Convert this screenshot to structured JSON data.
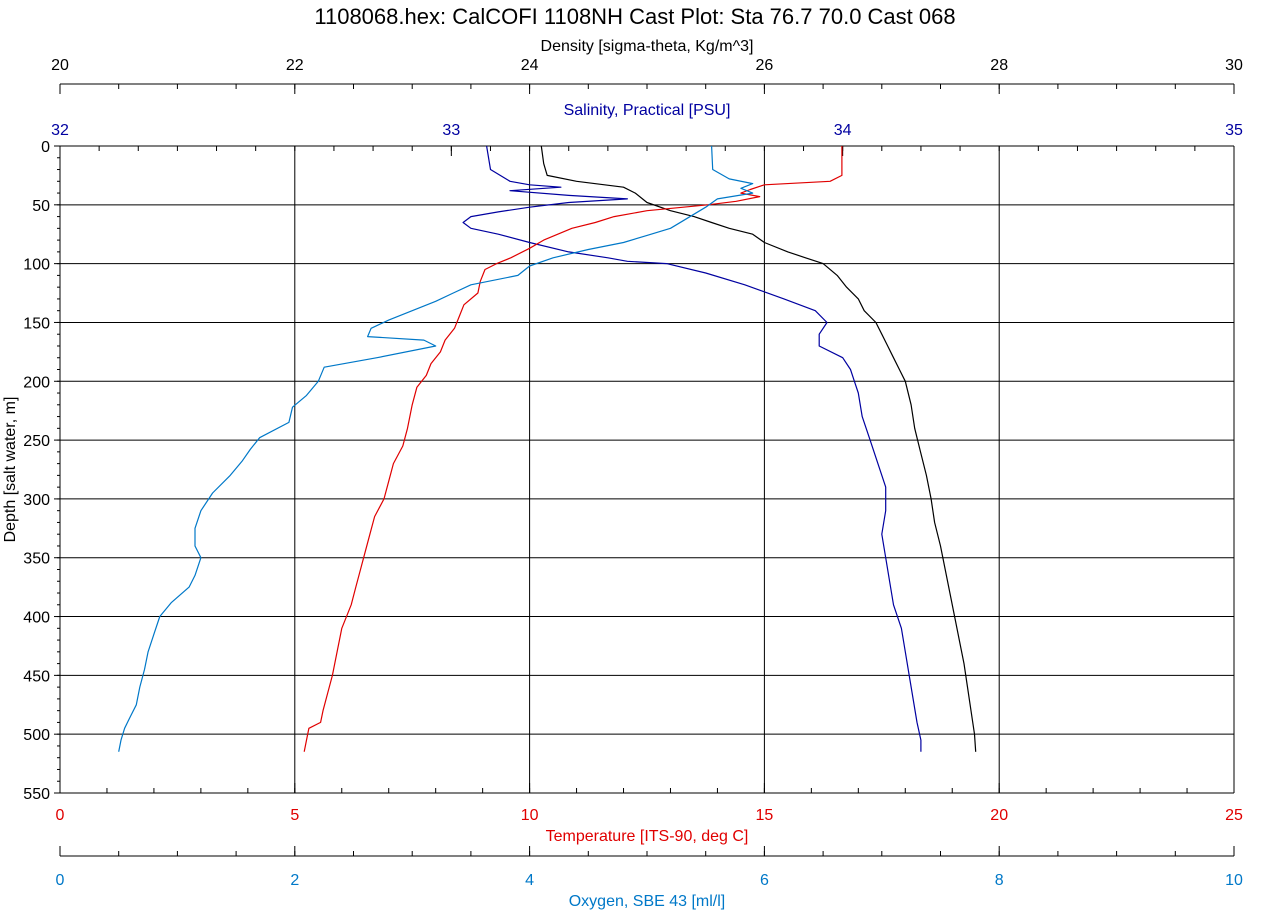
{
  "chart_data": {
    "type": "line",
    "title": "1108068.hex: CalCOFI 1108NH Cast Plot: Sta 76.7 70.0 Cast 068",
    "grid": true,
    "y_axis": {
      "label": "Depth [salt water, m]",
      "range": [
        0,
        550
      ],
      "ticks": [
        0,
        50,
        100,
        150,
        200,
        250,
        300,
        350,
        400,
        450,
        500,
        550
      ],
      "inverted": true
    },
    "x_axes": [
      {
        "id": "density",
        "label": "Density [sigma-theta, Kg/m^3]",
        "range": [
          20,
          30
        ],
        "ticks": [
          20,
          22,
          24,
          26,
          28,
          30
        ],
        "position": "top",
        "color": "#000000"
      },
      {
        "id": "salinity",
        "label": "Salinity, Practical [PSU]",
        "range": [
          32,
          35
        ],
        "ticks": [
          32,
          33,
          34,
          35
        ],
        "position": "top",
        "color": "#0000A0"
      },
      {
        "id": "temperature",
        "label": "Temperature [ITS-90, deg C]",
        "range": [
          0,
          25
        ],
        "ticks": [
          0,
          5,
          10,
          15,
          20,
          25
        ],
        "position": "bottom",
        "color": "#E00000"
      },
      {
        "id": "oxygen",
        "label": "Oxygen, SBE 43 [ml/l]",
        "range": [
          0,
          10
        ],
        "ticks": [
          0,
          2,
          4,
          6,
          8,
          10
        ],
        "position": "bottom",
        "color": "#0078C8"
      }
    ],
    "series": [
      {
        "axis": "density",
        "color": "#000000",
        "points": [
          [
            24.1,
            0
          ],
          [
            24.12,
            15
          ],
          [
            24.15,
            25
          ],
          [
            24.4,
            30
          ],
          [
            24.8,
            35
          ],
          [
            24.9,
            40
          ],
          [
            25.0,
            48
          ],
          [
            25.2,
            55
          ],
          [
            25.4,
            60
          ],
          [
            25.55,
            65
          ],
          [
            25.7,
            70
          ],
          [
            25.9,
            75
          ],
          [
            26.0,
            82
          ],
          [
            26.2,
            90
          ],
          [
            26.35,
            95
          ],
          [
            26.5,
            100
          ],
          [
            26.62,
            110
          ],
          [
            26.7,
            120
          ],
          [
            26.8,
            130
          ],
          [
            26.85,
            140
          ],
          [
            26.95,
            150
          ],
          [
            27.0,
            160
          ],
          [
            27.05,
            170
          ],
          [
            27.1,
            180
          ],
          [
            27.15,
            190
          ],
          [
            27.2,
            200
          ],
          [
            27.25,
            220
          ],
          [
            27.28,
            240
          ],
          [
            27.33,
            260
          ],
          [
            27.38,
            280
          ],
          [
            27.42,
            300
          ],
          [
            27.45,
            320
          ],
          [
            27.5,
            340
          ],
          [
            27.54,
            360
          ],
          [
            27.58,
            380
          ],
          [
            27.62,
            400
          ],
          [
            27.66,
            420
          ],
          [
            27.7,
            440
          ],
          [
            27.73,
            460
          ],
          [
            27.76,
            480
          ],
          [
            27.79,
            500
          ],
          [
            27.8,
            515
          ]
        ]
      },
      {
        "axis": "salinity",
        "color": "#0000A0",
        "points": [
          [
            33.09,
            0
          ],
          [
            33.1,
            20
          ],
          [
            33.15,
            30
          ],
          [
            33.2,
            33
          ],
          [
            33.28,
            35
          ],
          [
            33.15,
            38
          ],
          [
            33.3,
            42
          ],
          [
            33.45,
            45
          ],
          [
            33.3,
            48
          ],
          [
            33.2,
            52
          ],
          [
            33.12,
            56
          ],
          [
            33.05,
            60
          ],
          [
            33.03,
            65
          ],
          [
            33.05,
            70
          ],
          [
            33.12,
            75
          ],
          [
            33.2,
            82
          ],
          [
            33.3,
            90
          ],
          [
            33.4,
            95
          ],
          [
            33.45,
            98
          ],
          [
            33.55,
            100
          ],
          [
            33.65,
            108
          ],
          [
            33.75,
            118
          ],
          [
            33.85,
            130
          ],
          [
            33.93,
            140
          ],
          [
            33.96,
            150
          ],
          [
            33.94,
            160
          ],
          [
            33.94,
            170
          ],
          [
            34.0,
            180
          ],
          [
            34.02,
            190
          ],
          [
            34.03,
            200
          ],
          [
            34.04,
            210
          ],
          [
            34.05,
            230
          ],
          [
            34.07,
            250
          ],
          [
            34.09,
            270
          ],
          [
            34.11,
            290
          ],
          [
            34.11,
            310
          ],
          [
            34.1,
            330
          ],
          [
            34.11,
            350
          ],
          [
            34.12,
            370
          ],
          [
            34.13,
            390
          ],
          [
            34.15,
            410
          ],
          [
            34.16,
            430
          ],
          [
            34.17,
            450
          ],
          [
            34.18,
            470
          ],
          [
            34.19,
            490
          ],
          [
            34.2,
            505
          ],
          [
            34.2,
            515
          ]
        ]
      },
      {
        "axis": "temperature",
        "color": "#E00000",
        "points": [
          [
            16.65,
            0
          ],
          [
            16.65,
            25
          ],
          [
            16.4,
            30
          ],
          [
            15.0,
            33
          ],
          [
            14.7,
            37
          ],
          [
            14.5,
            40
          ],
          [
            14.9,
            43
          ],
          [
            14.4,
            47
          ],
          [
            13.8,
            50
          ],
          [
            12.5,
            55
          ],
          [
            11.8,
            60
          ],
          [
            11.4,
            65
          ],
          [
            10.9,
            70
          ],
          [
            10.6,
            75
          ],
          [
            10.3,
            80
          ],
          [
            10.0,
            87
          ],
          [
            9.6,
            95
          ],
          [
            9.3,
            100
          ],
          [
            9.05,
            105
          ],
          [
            8.95,
            115
          ],
          [
            8.9,
            125
          ],
          [
            8.6,
            135
          ],
          [
            8.5,
            145
          ],
          [
            8.4,
            155
          ],
          [
            8.2,
            165
          ],
          [
            8.1,
            175
          ],
          [
            7.9,
            185
          ],
          [
            7.8,
            195
          ],
          [
            7.6,
            205
          ],
          [
            7.5,
            220
          ],
          [
            7.4,
            240
          ],
          [
            7.3,
            255
          ],
          [
            7.1,
            270
          ],
          [
            7.0,
            285
          ],
          [
            6.9,
            300
          ],
          [
            6.7,
            315
          ],
          [
            6.6,
            330
          ],
          [
            6.5,
            345
          ],
          [
            6.4,
            360
          ],
          [
            6.3,
            375
          ],
          [
            6.2,
            390
          ],
          [
            6.0,
            410
          ],
          [
            5.9,
            430
          ],
          [
            5.8,
            450
          ],
          [
            5.7,
            465
          ],
          [
            5.6,
            480
          ],
          [
            5.55,
            490
          ],
          [
            5.3,
            495
          ],
          [
            5.25,
            505
          ],
          [
            5.2,
            515
          ]
        ]
      },
      {
        "axis": "oxygen",
        "color": "#0078C8",
        "points": [
          [
            5.55,
            0
          ],
          [
            5.56,
            20
          ],
          [
            5.7,
            28
          ],
          [
            5.9,
            32
          ],
          [
            5.8,
            36
          ],
          [
            5.9,
            40
          ],
          [
            5.6,
            45
          ],
          [
            5.5,
            52
          ],
          [
            5.4,
            58
          ],
          [
            5.3,
            64
          ],
          [
            5.2,
            70
          ],
          [
            5.0,
            76
          ],
          [
            4.8,
            82
          ],
          [
            4.5,
            88
          ],
          [
            4.2,
            95
          ],
          [
            4.0,
            102
          ],
          [
            3.9,
            110
          ],
          [
            3.5,
            118
          ],
          [
            3.35,
            125
          ],
          [
            3.2,
            132
          ],
          [
            3.0,
            140
          ],
          [
            2.8,
            148
          ],
          [
            2.65,
            155
          ],
          [
            2.62,
            162
          ],
          [
            3.1,
            165
          ],
          [
            3.2,
            170
          ],
          [
            2.7,
            180
          ],
          [
            2.25,
            188
          ],
          [
            2.2,
            200
          ],
          [
            2.1,
            212
          ],
          [
            1.98,
            222
          ],
          [
            1.95,
            235
          ],
          [
            1.7,
            248
          ],
          [
            1.62,
            258
          ],
          [
            1.55,
            268
          ],
          [
            1.45,
            280
          ],
          [
            1.3,
            295
          ],
          [
            1.2,
            310
          ],
          [
            1.15,
            325
          ],
          [
            1.15,
            340
          ],
          [
            1.2,
            350
          ],
          [
            1.15,
            365
          ],
          [
            1.1,
            375
          ],
          [
            0.95,
            388
          ],
          [
            0.85,
            400
          ],
          [
            0.8,
            415
          ],
          [
            0.75,
            430
          ],
          [
            0.72,
            445
          ],
          [
            0.68,
            460
          ],
          [
            0.65,
            475
          ],
          [
            0.6,
            485
          ],
          [
            0.55,
            495
          ],
          [
            0.52,
            505
          ],
          [
            0.5,
            515
          ]
        ]
      }
    ]
  }
}
